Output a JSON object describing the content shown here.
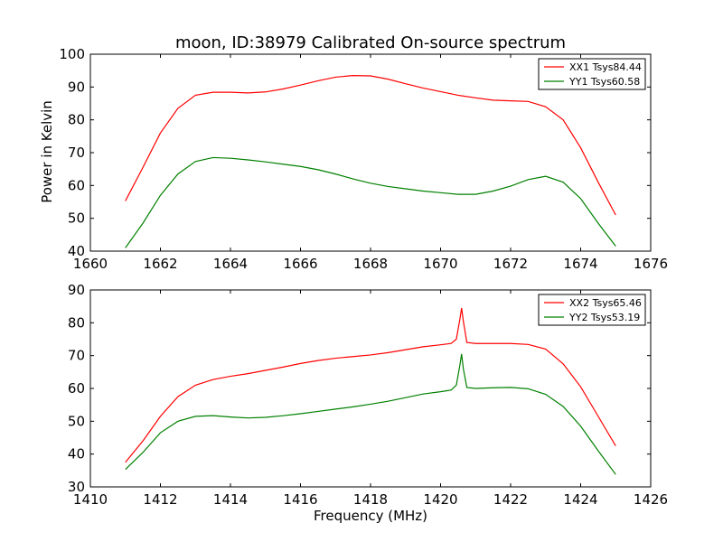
{
  "chart_data": [
    {
      "type": "line",
      "title": "moon, ID:38979 Calibrated On-source spectrum",
      "xlabel": "",
      "ylabel": "Power in Kelvin",
      "xlim": [
        1660,
        1676
      ],
      "ylim": [
        40,
        100
      ],
      "xticks": [
        1660,
        1662,
        1664,
        1666,
        1668,
        1670,
        1672,
        1674,
        1676
      ],
      "yticks": [
        40,
        50,
        60,
        70,
        80,
        90,
        100
      ],
      "grid": false,
      "legend": "top-right",
      "series": [
        {
          "name": "XX1 Tsys84.44",
          "color": "#ff0000",
          "x": [
            1661.0,
            1661.5,
            1662.0,
            1662.5,
            1663.0,
            1663.5,
            1664.0,
            1664.5,
            1665.0,
            1665.5,
            1666.0,
            1666.5,
            1667.0,
            1667.5,
            1668.0,
            1668.5,
            1669.0,
            1669.5,
            1670.0,
            1670.5,
            1671.0,
            1671.5,
            1672.0,
            1672.5,
            1673.0,
            1673.5,
            1674.0,
            1674.5,
            1675.0
          ],
          "y": [
            55.3,
            65.5,
            76.0,
            83.5,
            87.5,
            88.4,
            88.4,
            88.2,
            88.5,
            89.4,
            90.6,
            91.9,
            93.0,
            93.5,
            93.4,
            92.4,
            91.0,
            89.7,
            88.6,
            87.5,
            86.7,
            86.0,
            85.8,
            85.6,
            84.0,
            80.0,
            71.5,
            61.0,
            51.0
          ]
        },
        {
          "name": "YY1 Tsys60.58",
          "color": "#008000",
          "x": [
            1661.0,
            1661.5,
            1662.0,
            1662.5,
            1663.0,
            1663.5,
            1664.0,
            1664.5,
            1665.0,
            1665.5,
            1666.0,
            1666.5,
            1667.0,
            1667.5,
            1668.0,
            1668.5,
            1669.0,
            1669.5,
            1670.0,
            1670.5,
            1671.0,
            1671.5,
            1672.0,
            1672.5,
            1673.0,
            1673.5,
            1674.0,
            1674.5,
            1675.0
          ],
          "y": [
            41.0,
            48.5,
            57.0,
            63.5,
            67.3,
            68.5,
            68.3,
            67.8,
            67.2,
            66.5,
            65.8,
            64.8,
            63.5,
            62.0,
            60.7,
            59.7,
            59.0,
            58.3,
            57.8,
            57.3,
            57.3,
            58.3,
            59.8,
            61.8,
            62.8,
            61.0,
            56.0,
            48.5,
            41.5
          ]
        }
      ]
    },
    {
      "type": "line",
      "title": "",
      "xlabel": "Frequency (MHz)",
      "ylabel": "",
      "xlim": [
        1410,
        1426
      ],
      "ylim": [
        30,
        90
      ],
      "xticks": [
        1410,
        1412,
        1414,
        1416,
        1418,
        1420,
        1422,
        1424,
        1426
      ],
      "yticks": [
        30,
        40,
        50,
        60,
        70,
        80,
        90
      ],
      "grid": false,
      "legend": "top-right",
      "series": [
        {
          "name": "XX2 Tsys65.46",
          "color": "#ff0000",
          "x": [
            1411.0,
            1411.5,
            1412.0,
            1412.5,
            1413.0,
            1413.5,
            1414.0,
            1414.5,
            1415.0,
            1415.5,
            1416.0,
            1416.5,
            1417.0,
            1417.5,
            1418.0,
            1418.5,
            1419.0,
            1419.5,
            1420.0,
            1420.3,
            1420.45,
            1420.55,
            1420.6,
            1420.65,
            1420.75,
            1421.0,
            1421.5,
            1422.0,
            1422.5,
            1423.0,
            1423.5,
            1424.0,
            1424.5,
            1425.0
          ],
          "y": [
            37.5,
            44.0,
            51.5,
            57.5,
            61.0,
            62.7,
            63.7,
            64.5,
            65.5,
            66.5,
            67.6,
            68.5,
            69.2,
            69.7,
            70.2,
            70.9,
            71.8,
            72.7,
            73.3,
            73.7,
            75.0,
            81.0,
            84.5,
            80.5,
            74.0,
            73.7,
            73.7,
            73.7,
            73.4,
            72.0,
            67.5,
            60.5,
            51.5,
            42.5
          ]
        },
        {
          "name": "YY2 Tsys53.19",
          "color": "#008000",
          "x": [
            1411.0,
            1411.5,
            1412.0,
            1412.5,
            1413.0,
            1413.5,
            1414.0,
            1414.5,
            1415.0,
            1415.5,
            1416.0,
            1416.5,
            1417.0,
            1417.5,
            1418.0,
            1418.5,
            1419.0,
            1419.5,
            1420.0,
            1420.3,
            1420.45,
            1420.55,
            1420.6,
            1420.65,
            1420.75,
            1421.0,
            1421.5,
            1422.0,
            1422.5,
            1423.0,
            1423.5,
            1424.0,
            1424.5,
            1425.0
          ],
          "y": [
            35.3,
            40.5,
            46.5,
            50.0,
            51.5,
            51.7,
            51.3,
            51.0,
            51.2,
            51.7,
            52.3,
            53.0,
            53.7,
            54.4,
            55.2,
            56.1,
            57.2,
            58.3,
            59.0,
            59.5,
            61.0,
            67.0,
            70.5,
            66.0,
            60.3,
            60.0,
            60.2,
            60.3,
            59.9,
            58.2,
            54.5,
            48.5,
            41.0,
            33.8
          ]
        }
      ]
    }
  ]
}
